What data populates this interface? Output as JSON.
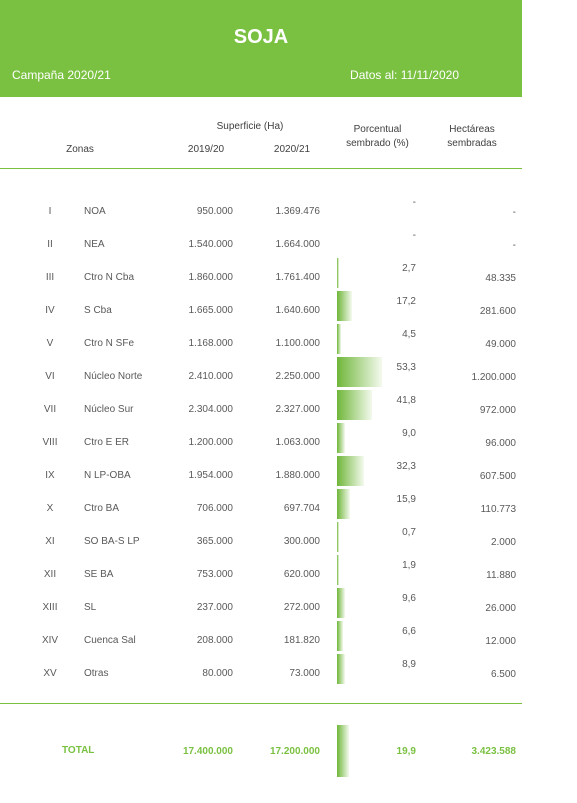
{
  "header": {
    "title": "SOJA",
    "campaign": "Campaña 2020/21",
    "date": "Datos al: 11/11/2020"
  },
  "columns": {
    "zonas": "Zonas",
    "superficie": "Superficie (Ha)",
    "y1": "2019/20",
    "y2": "2020/21",
    "porcentual_1": "Porcentual",
    "porcentual_2": "sembrado (%)",
    "hectareas_1": "Hectáreas",
    "hectareas_2": "sembradas"
  },
  "rows": [
    {
      "num": "I",
      "zona": "NOA",
      "y2019": "950.000",
      "y2020": "1.369.476",
      "pct": "-",
      "pct_value": 0,
      "has": "-"
    },
    {
      "num": "II",
      "zona": "NEA",
      "y2019": "1.540.000",
      "y2020": "1.664.000",
      "pct": "-",
      "pct_value": 0,
      "has": "-"
    },
    {
      "num": "III",
      "zona": "Ctro N Cba",
      "y2019": "1.860.000",
      "y2020": "1.761.400",
      "pct": "2,7",
      "pct_value": 2.7,
      "has": "48.335"
    },
    {
      "num": "IV",
      "zona": "S Cba",
      "y2019": "1.665.000",
      "y2020": "1.640.600",
      "pct": "17,2",
      "pct_value": 17.2,
      "has": "281.600"
    },
    {
      "num": "V",
      "zona": "Ctro N SFe",
      "y2019": "1.168.000",
      "y2020": "1.100.000",
      "pct": "4,5",
      "pct_value": 4.5,
      "has": "49.000"
    },
    {
      "num": "VI",
      "zona": "Núcleo Norte",
      "y2019": "2.410.000",
      "y2020": "2.250.000",
      "pct": "53,3",
      "pct_value": 53.3,
      "has": "1.200.000"
    },
    {
      "num": "VII",
      "zona": "Núcleo Sur",
      "y2019": "2.304.000",
      "y2020": "2.327.000",
      "pct": "41,8",
      "pct_value": 41.8,
      "has": "972.000"
    },
    {
      "num": "VIII",
      "zona": "Ctro E ER",
      "y2019": "1.200.000",
      "y2020": "1.063.000",
      "pct": "9,0",
      "pct_value": 9.0,
      "has": "96.000"
    },
    {
      "num": "IX",
      "zona": "N LP-OBA",
      "y2019": "1.954.000",
      "y2020": "1.880.000",
      "pct": "32,3",
      "pct_value": 32.3,
      "has": "607.500"
    },
    {
      "num": "X",
      "zona": "Ctro BA",
      "y2019": "706.000",
      "y2020": "697.704",
      "pct": "15,9",
      "pct_value": 15.9,
      "has": "110.773"
    },
    {
      "num": "XI",
      "zona": "SO BA-S LP",
      "y2019": "365.000",
      "y2020": "300.000",
      "pct": "0,7",
      "pct_value": 0.7,
      "has": "2.000"
    },
    {
      "num": "XII",
      "zona": "SE BA",
      "y2019": "753.000",
      "y2020": "620.000",
      "pct": "1,9",
      "pct_value": 1.9,
      "has": "11.880"
    },
    {
      "num": "XIII",
      "zona": "SL",
      "y2019": "237.000",
      "y2020": "272.000",
      "pct": "9,6",
      "pct_value": 9.6,
      "has": "26.000"
    },
    {
      "num": "XIV",
      "zona": "Cuenca Sal",
      "y2019": "208.000",
      "y2020": "181.820",
      "pct": "6,6",
      "pct_value": 6.6,
      "has": "12.000"
    },
    {
      "num": "XV",
      "zona": "Otras",
      "y2019": "80.000",
      "y2020": "73.000",
      "pct": "8,9",
      "pct_value": 8.9,
      "has": "6.500"
    }
  ],
  "total": {
    "label": "TOTAL",
    "y2019": "17.400.000",
    "y2020": "17.200.000",
    "pct": "19,9",
    "pct_value": 19.9,
    "has": "3.423.588"
  }
}
